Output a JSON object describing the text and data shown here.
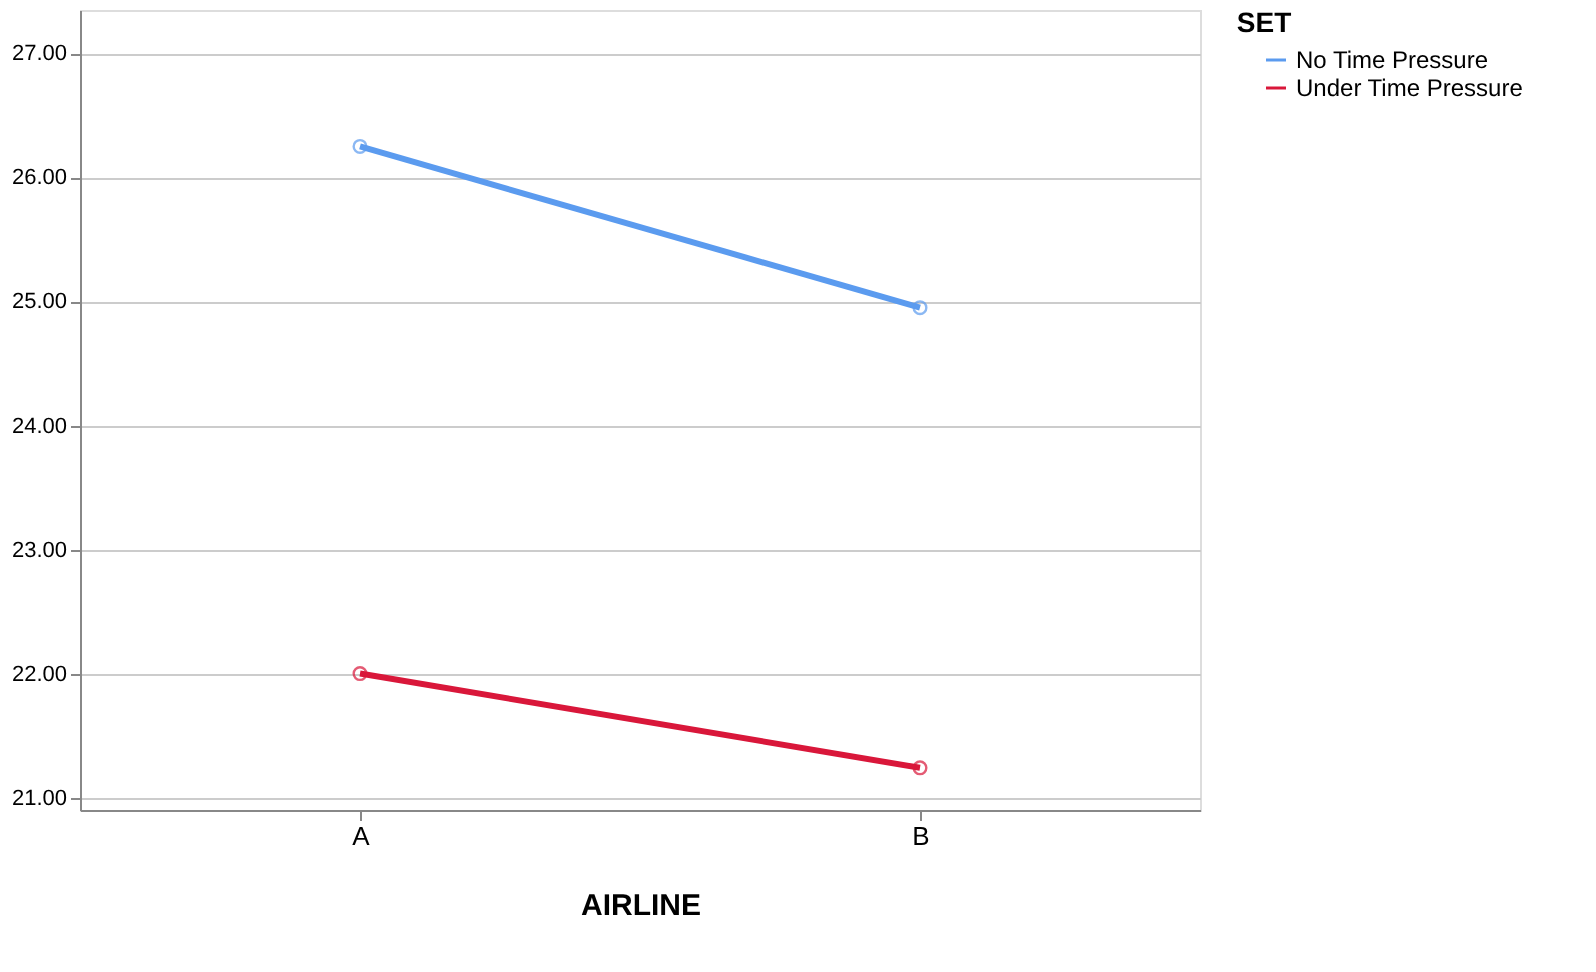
{
  "chart_data": {
    "type": "line",
    "xlabel": "AIRLINE",
    "legend_title": "SET",
    "categories": [
      "A",
      "B"
    ],
    "series": [
      {
        "name": "No Time Pressure",
        "color": "#5b9bef",
        "values": [
          26.25,
          24.95
        ]
      },
      {
        "name": "Under Time Pressure",
        "color": "#d9173a",
        "values": [
          22.0,
          21.24
        ]
      }
    ],
    "ylim": [
      20.9,
      27.35
    ],
    "yticks": [
      {
        "value": 21,
        "label": "21.00"
      },
      {
        "value": 22,
        "label": "22.00"
      },
      {
        "value": 23,
        "label": "23.00"
      },
      {
        "value": 24,
        "label": "24.00"
      },
      {
        "value": 25,
        "label": "25.00"
      },
      {
        "value": 26,
        "label": "26.00"
      },
      {
        "value": 27,
        "label": "27.00"
      }
    ],
    "grid": "y",
    "legend": "top right",
    "marker": "circle",
    "line_style": "solid"
  }
}
